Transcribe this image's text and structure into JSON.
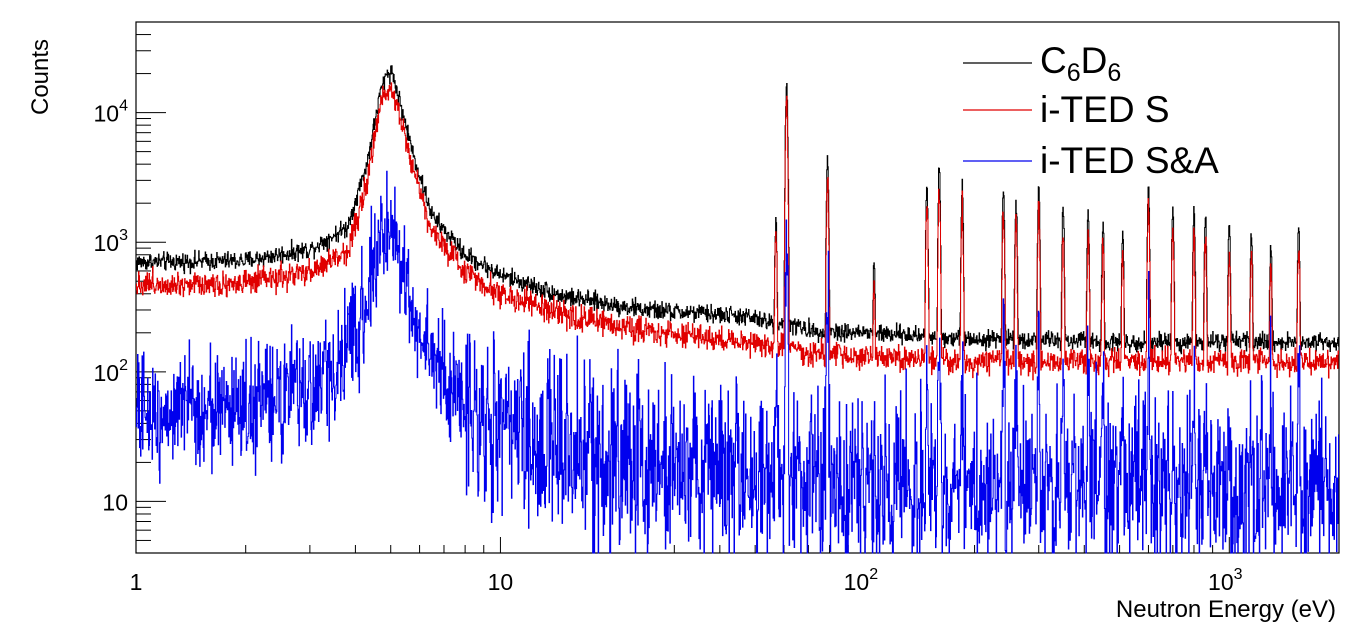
{
  "chart_data": {
    "type": "line",
    "xlabel": "Neutron Energy (eV)",
    "ylabel": "Counts",
    "xscale": "log",
    "yscale": "log",
    "xlim": [
      1,
      2000
    ],
    "ylim": [
      4,
      50000
    ],
    "x_ticks": [
      {
        "value": 1,
        "base": "1",
        "exp": ""
      },
      {
        "value": 10,
        "base": "10",
        "exp": ""
      },
      {
        "value": 100,
        "base": "10",
        "exp": "2"
      },
      {
        "value": 1000,
        "base": "10",
        "exp": "3"
      }
    ],
    "y_ticks": [
      {
        "value": 10,
        "base": "10",
        "exp": ""
      },
      {
        "value": 100,
        "base": "10",
        "exp": "2"
      },
      {
        "value": 1000,
        "base": "10",
        "exp": "3"
      },
      {
        "value": 10000,
        "base": "10",
        "exp": "4"
      }
    ],
    "legend": {
      "position": "top-right"
    },
    "series": [
      {
        "name": "C6D6",
        "legend_main": "C",
        "legend_sub1": "6",
        "legend_mid": "D",
        "legend_sub2": "6",
        "color": "#000000",
        "points": [
          [
            1,
            700
          ],
          [
            2,
            720
          ],
          [
            3,
            880
          ],
          [
            3.8,
            1300
          ],
          [
            4.3,
            4000
          ],
          [
            4.7,
            15000
          ],
          [
            4.9,
            20500
          ],
          [
            5.05,
            20500
          ],
          [
            5.3,
            12000
          ],
          [
            5.8,
            4500
          ],
          [
            6.5,
            1600
          ],
          [
            8,
            800
          ],
          [
            10,
            560
          ],
          [
            15,
            380
          ],
          [
            25,
            300
          ],
          [
            45,
            270
          ],
          [
            55,
            240
          ],
          [
            60,
            240
          ],
          [
            70,
            210
          ],
          [
            100,
            200
          ],
          [
            200,
            180
          ],
          [
            500,
            170
          ],
          [
            1000,
            170
          ],
          [
            2000,
            170
          ]
        ],
        "peaks": [
          [
            48,
            290
          ],
          [
            57,
            1500
          ],
          [
            61,
            17500
          ],
          [
            79,
            4300
          ],
          [
            106,
            700
          ],
          [
            148,
            2900
          ],
          [
            160,
            3800
          ],
          [
            185,
            2700
          ],
          [
            240,
            2600
          ],
          [
            260,
            2200
          ],
          [
            300,
            2700
          ],
          [
            350,
            1900
          ],
          [
            410,
            1700
          ],
          [
            450,
            1500
          ],
          [
            510,
            1200
          ],
          [
            600,
            2700
          ],
          [
            700,
            1900
          ],
          [
            800,
            1700
          ],
          [
            860,
            1600
          ],
          [
            1000,
            1400
          ],
          [
            1150,
            1200
          ],
          [
            1300,
            1000
          ],
          [
            1550,
            1300
          ]
        ]
      },
      {
        "name": "i-TED S",
        "legend_main": "i-TED S",
        "color": "#e00000",
        "points": [
          [
            1,
            480
          ],
          [
            2,
            480
          ],
          [
            3,
            580
          ],
          [
            3.8,
            850
          ],
          [
            4.3,
            2800
          ],
          [
            4.7,
            12000
          ],
          [
            4.9,
            15500
          ],
          [
            5.05,
            15500
          ],
          [
            5.3,
            9500
          ],
          [
            5.8,
            3500
          ],
          [
            6.5,
            1200
          ],
          [
            8,
            600
          ],
          [
            10,
            400
          ],
          [
            15,
            270
          ],
          [
            25,
            210
          ],
          [
            45,
            170
          ],
          [
            55,
            160
          ],
          [
            60,
            160
          ],
          [
            70,
            140
          ],
          [
            100,
            130
          ],
          [
            200,
            120
          ],
          [
            500,
            120
          ],
          [
            1000,
            120
          ],
          [
            2000,
            120
          ]
        ],
        "peaks": [
          [
            48,
            200
          ],
          [
            57,
            1200
          ],
          [
            61,
            11500
          ],
          [
            79,
            2800
          ],
          [
            106,
            450
          ],
          [
            148,
            1900
          ],
          [
            160,
            2500
          ],
          [
            185,
            1800
          ],
          [
            240,
            1700
          ],
          [
            260,
            1500
          ],
          [
            300,
            1800
          ],
          [
            350,
            1200
          ],
          [
            410,
            1100
          ],
          [
            450,
            1000
          ],
          [
            510,
            800
          ],
          [
            600,
            1900
          ],
          [
            700,
            1300
          ],
          [
            800,
            1100
          ],
          [
            860,
            1000
          ],
          [
            1000,
            900
          ],
          [
            1150,
            800
          ],
          [
            1300,
            700
          ],
          [
            1550,
            900
          ]
        ]
      },
      {
        "name": "i-TED S&A",
        "legend_main": "i-TED S&A",
        "color": "#0000ee",
        "points": [
          [
            1,
            48
          ],
          [
            2,
            55
          ],
          [
            3,
            70
          ],
          [
            3.8,
            130
          ],
          [
            4.3,
            400
          ],
          [
            4.7,
            1000
          ],
          [
            4.9,
            1280
          ],
          [
            5.05,
            1250
          ],
          [
            5.3,
            800
          ],
          [
            5.8,
            280
          ],
          [
            6.5,
            120
          ],
          [
            8,
            55
          ],
          [
            10,
            35
          ],
          [
            15,
            26
          ],
          [
            25,
            20
          ],
          [
            45,
            17
          ],
          [
            55,
            16
          ],
          [
            60,
            16
          ],
          [
            70,
            14
          ],
          [
            100,
            13
          ],
          [
            200,
            13
          ],
          [
            500,
            13
          ],
          [
            1000,
            12
          ],
          [
            2000,
            12
          ]
        ],
        "peaks": [
          [
            48,
            14
          ],
          [
            57,
            70
          ],
          [
            61,
            1000
          ],
          [
            79,
            180
          ],
          [
            106,
            40
          ],
          [
            148,
            130
          ],
          [
            160,
            200
          ],
          [
            185,
            100
          ],
          [
            240,
            150
          ],
          [
            260,
            150
          ],
          [
            300,
            180
          ],
          [
            350,
            90
          ],
          [
            410,
            90
          ],
          [
            450,
            70
          ],
          [
            510,
            60
          ],
          [
            600,
            80
          ],
          [
            700,
            70
          ],
          [
            800,
            60
          ],
          [
            860,
            60
          ],
          [
            1000,
            60
          ],
          [
            1150,
            50
          ],
          [
            1300,
            40
          ],
          [
            1550,
            50
          ]
        ]
      }
    ]
  }
}
